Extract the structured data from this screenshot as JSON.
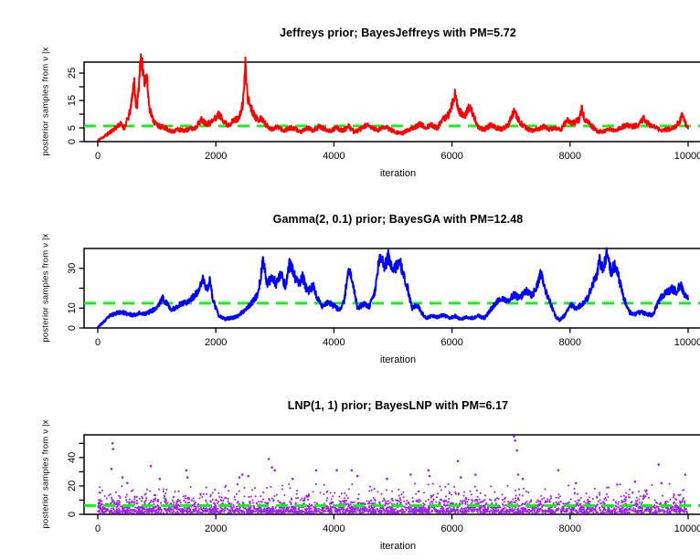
{
  "figure": {
    "background": "#FFFFFF",
    "axis_color": "#000000",
    "reference_line_color": "#00FF00",
    "xticks": [
      0,
      2000,
      4000,
      6000,
      8000,
      10000
    ]
  },
  "chart_data": [
    {
      "type": "line",
      "title": "Jeffreys prior; BayesJeffreys with PM=5.72",
      "xlabel": "iteration",
      "ylabel": "posterior samples from ν |x",
      "color": "#FF0000",
      "posterior_mean": 5.72,
      "xlim": [
        0,
        10000
      ],
      "ylim": [
        0,
        29
      ],
      "grid": false,
      "yticks": [
        {
          "v": 0,
          "label": "0"
        },
        {
          "v": 5,
          "label": "5"
        },
        {
          "v": 10,
          "label": ""
        },
        {
          "v": 15,
          "label": "15"
        },
        {
          "v": 20,
          "label": ""
        },
        {
          "v": 25,
          "label": "25"
        }
      ],
      "seed": 11,
      "noise": [
        0.3,
        0.11
      ],
      "keypoints": [
        [
          0,
          0.4
        ],
        [
          150,
          2.5
        ],
        [
          300,
          5
        ],
        [
          380,
          6.5
        ],
        [
          450,
          5
        ],
        [
          520,
          9
        ],
        [
          560,
          12
        ],
        [
          600,
          20
        ],
        [
          620,
          22
        ],
        [
          650,
          12
        ],
        [
          680,
          16
        ],
        [
          720,
          29
        ],
        [
          760,
          27
        ],
        [
          800,
          22
        ],
        [
          830,
          24
        ],
        [
          870,
          13
        ],
        [
          920,
          9
        ],
        [
          960,
          7
        ],
        [
          1050,
          5.5
        ],
        [
          1150,
          5
        ],
        [
          1250,
          3.5
        ],
        [
          1350,
          4.5
        ],
        [
          1450,
          4
        ],
        [
          1550,
          4.5
        ],
        [
          1650,
          5
        ],
        [
          1750,
          8
        ],
        [
          1850,
          6.5
        ],
        [
          1950,
          7.5
        ],
        [
          2050,
          10
        ],
        [
          2100,
          8.5
        ],
        [
          2200,
          6
        ],
        [
          2300,
          7.5
        ],
        [
          2400,
          9
        ],
        [
          2460,
          14
        ],
        [
          2500,
          28
        ],
        [
          2540,
          16
        ],
        [
          2600,
          12
        ],
        [
          2700,
          8
        ],
        [
          2780,
          8.5
        ],
        [
          2850,
          6
        ],
        [
          2950,
          4.5
        ],
        [
          3050,
          5.5
        ],
        [
          3150,
          4
        ],
        [
          3250,
          5
        ],
        [
          3350,
          4.5
        ],
        [
          3450,
          3.5
        ],
        [
          3550,
          5
        ],
        [
          3650,
          4
        ],
        [
          3750,
          5.5
        ],
        [
          3850,
          4.5
        ],
        [
          3950,
          4
        ],
        [
          4050,
          5
        ],
        [
          4150,
          4
        ],
        [
          4250,
          5.5
        ],
        [
          4350,
          3.5
        ],
        [
          4450,
          4.5
        ],
        [
          4550,
          6
        ],
        [
          4650,
          5
        ],
        [
          4750,
          4
        ],
        [
          4850,
          5.5
        ],
        [
          4950,
          4.5
        ],
        [
          5050,
          3.5
        ],
        [
          5150,
          3
        ],
        [
          5250,
          4
        ],
        [
          5350,
          5
        ],
        [
          5450,
          6.5
        ],
        [
          5550,
          5
        ],
        [
          5650,
          6
        ],
        [
          5750,
          5
        ],
        [
          5850,
          8
        ],
        [
          5950,
          10
        ],
        [
          6050,
          17
        ],
        [
          6100,
          12
        ],
        [
          6200,
          9
        ],
        [
          6300,
          13
        ],
        [
          6350,
          10
        ],
        [
          6450,
          5
        ],
        [
          6550,
          4.5
        ],
        [
          6650,
          6
        ],
        [
          6750,
          5
        ],
        [
          6850,
          4.5
        ],
        [
          6950,
          6
        ],
        [
          7050,
          11
        ],
        [
          7150,
          7
        ],
        [
          7250,
          5
        ],
        [
          7350,
          4
        ],
        [
          7450,
          4.5
        ],
        [
          7550,
          5.5
        ],
        [
          7650,
          4.5
        ],
        [
          7750,
          5
        ],
        [
          7850,
          4.5
        ],
        [
          7950,
          8
        ],
        [
          8050,
          6.5
        ],
        [
          8150,
          8
        ],
        [
          8200,
          12
        ],
        [
          8250,
          8
        ],
        [
          8350,
          6
        ],
        [
          8450,
          4
        ],
        [
          8550,
          3.5
        ],
        [
          8650,
          4.5
        ],
        [
          8750,
          4
        ],
        [
          8850,
          5
        ],
        [
          8950,
          6
        ],
        [
          9050,
          5.5
        ],
        [
          9150,
          6
        ],
        [
          9250,
          8.5
        ],
        [
          9350,
          6
        ],
        [
          9450,
          5
        ],
        [
          9550,
          4
        ],
        [
          9650,
          4.5
        ],
        [
          9750,
          5
        ],
        [
          9850,
          7
        ],
        [
          9900,
          10
        ],
        [
          9950,
          7
        ],
        [
          10000,
          5
        ]
      ]
    },
    {
      "type": "line",
      "title": "Gamma(2, 0.1) prior; BayesGA with PM=12.48",
      "xlabel": "iteration",
      "ylabel": "posterior samples from ν |x",
      "color": "#0000FF",
      "posterior_mean": 12.48,
      "xlim": [
        0,
        10000
      ],
      "ylim": [
        0,
        40
      ],
      "grid": false,
      "yticks": [
        {
          "v": 0,
          "label": "0"
        },
        {
          "v": 10,
          "label": "10"
        },
        {
          "v": 20,
          "label": ""
        },
        {
          "v": 30,
          "label": "30"
        }
      ],
      "seed": 23,
      "noise": [
        0.35,
        0.09
      ],
      "keypoints": [
        [
          0,
          0.5
        ],
        [
          100,
          3
        ],
        [
          200,
          6
        ],
        [
          300,
          7.5
        ],
        [
          400,
          8
        ],
        [
          500,
          7
        ],
        [
          600,
          6.5
        ],
        [
          700,
          7.5
        ],
        [
          800,
          7
        ],
        [
          900,
          8.5
        ],
        [
          1000,
          10
        ],
        [
          1100,
          15
        ],
        [
          1150,
          13
        ],
        [
          1250,
          9
        ],
        [
          1300,
          10
        ],
        [
          1400,
          12
        ],
        [
          1500,
          13
        ],
        [
          1600,
          15
        ],
        [
          1700,
          18
        ],
        [
          1780,
          25
        ],
        [
          1840,
          19
        ],
        [
          1900,
          24
        ],
        [
          1950,
          14
        ],
        [
          2050,
          6
        ],
        [
          2150,
          4.5
        ],
        [
          2250,
          5
        ],
        [
          2350,
          5.5
        ],
        [
          2450,
          8
        ],
        [
          2550,
          11
        ],
        [
          2650,
          14
        ],
        [
          2720,
          18
        ],
        [
          2800,
          34
        ],
        [
          2870,
          22
        ],
        [
          2950,
          26
        ],
        [
          3020,
          22
        ],
        [
          3100,
          27
        ],
        [
          3180,
          21
        ],
        [
          3250,
          33
        ],
        [
          3320,
          27
        ],
        [
          3400,
          22
        ],
        [
          3470,
          26
        ],
        [
          3550,
          18
        ],
        [
          3650,
          21
        ],
        [
          3720,
          15
        ],
        [
          3800,
          11
        ],
        [
          3900,
          13
        ],
        [
          4000,
          11
        ],
        [
          4100,
          9
        ],
        [
          4170,
          13
        ],
        [
          4250,
          30
        ],
        [
          4320,
          23
        ],
        [
          4400,
          10
        ],
        [
          4500,
          12
        ],
        [
          4600,
          11
        ],
        [
          4700,
          19
        ],
        [
          4780,
          38
        ],
        [
          4850,
          30
        ],
        [
          4920,
          36
        ],
        [
          5000,
          28
        ],
        [
          5060,
          31
        ],
        [
          5120,
          33
        ],
        [
          5180,
          26
        ],
        [
          5250,
          20
        ],
        [
          5320,
          10
        ],
        [
          5400,
          12
        ],
        [
          5480,
          8
        ],
        [
          5560,
          5
        ],
        [
          5650,
          6
        ],
        [
          5750,
          5.5
        ],
        [
          5850,
          6.5
        ],
        [
          5950,
          5
        ],
        [
          6050,
          6
        ],
        [
          6150,
          4.5
        ],
        [
          6250,
          5.5
        ],
        [
          6350,
          5
        ],
        [
          6450,
          6
        ],
        [
          6550,
          5
        ],
        [
          6650,
          9
        ],
        [
          6750,
          13
        ],
        [
          6850,
          15
        ],
        [
          6950,
          14
        ],
        [
          7050,
          17
        ],
        [
          7150,
          15
        ],
        [
          7250,
          19
        ],
        [
          7350,
          16
        ],
        [
          7450,
          22
        ],
        [
          7500,
          28
        ],
        [
          7560,
          21
        ],
        [
          7650,
          14
        ],
        [
          7750,
          6
        ],
        [
          7820,
          4
        ],
        [
          7900,
          6
        ],
        [
          8000,
          12
        ],
        [
          8100,
          10
        ],
        [
          8200,
          12
        ],
        [
          8300,
          15
        ],
        [
          8370,
          21
        ],
        [
          8450,
          27
        ],
        [
          8500,
          34
        ],
        [
          8560,
          30
        ],
        [
          8620,
          37
        ],
        [
          8700,
          28
        ],
        [
          8760,
          32
        ],
        [
          8820,
          26
        ],
        [
          8900,
          16
        ],
        [
          9000,
          8
        ],
        [
          9100,
          7
        ],
        [
          9200,
          8
        ],
        [
          9300,
          7
        ],
        [
          9400,
          6.5
        ],
        [
          9480,
          12
        ],
        [
          9550,
          16
        ],
        [
          9650,
          18
        ],
        [
          9720,
          20
        ],
        [
          9800,
          18
        ],
        [
          9870,
          22
        ],
        [
          9930,
          17
        ],
        [
          10000,
          16
        ]
      ]
    },
    {
      "type": "scatter",
      "title": "LNP(1, 1) prior; BayesLNP with PM=6.17",
      "xlabel": "iteration",
      "ylabel": "posterior samples from ν |x",
      "color": "#A020F0",
      "posterior_mean": 6.17,
      "xlim": [
        0,
        10000
      ],
      "ylim": [
        0,
        56
      ],
      "grid": false,
      "yticks": [
        {
          "v": 0,
          "label": "0"
        },
        {
          "v": 10,
          "label": ""
        },
        {
          "v": 20,
          "label": "20"
        },
        {
          "v": 30,
          "label": ""
        },
        {
          "v": 40,
          "label": "40"
        },
        {
          "v": 50,
          "label": ""
        }
      ],
      "seed": 7,
      "band": {
        "count": 3000,
        "floor": 0.9,
        "exp_mean": 4.3,
        "cap": 22
      },
      "outliers": [
        [
          230,
          32
        ],
        [
          250,
          50
        ],
        [
          260,
          46
        ],
        [
          420,
          26
        ],
        [
          500,
          22
        ],
        [
          900,
          34
        ],
        [
          1050,
          25
        ],
        [
          1500,
          31
        ],
        [
          1520,
          26
        ],
        [
          2400,
          26
        ],
        [
          2450,
          28
        ],
        [
          2550,
          27
        ],
        [
          2900,
          39
        ],
        [
          2950,
          33
        ],
        [
          3000,
          31
        ],
        [
          3300,
          25
        ],
        [
          3700,
          31
        ],
        [
          4050,
          31
        ],
        [
          4300,
          31
        ],
        [
          4400,
          27
        ],
        [
          4900,
          25
        ],
        [
          5300,
          28
        ],
        [
          5600,
          31
        ],
        [
          5620,
          27
        ],
        [
          6100,
          37.5
        ],
        [
          6150,
          26
        ],
        [
          6400,
          28
        ],
        [
          7050,
          55
        ],
        [
          7070,
          52
        ],
        [
          7100,
          45
        ],
        [
          7120,
          28
        ],
        [
          7200,
          25
        ],
        [
          7800,
          31
        ],
        [
          8100,
          22
        ],
        [
          8800,
          21
        ],
        [
          9100,
          23
        ],
        [
          9500,
          35
        ],
        [
          9550,
          22
        ],
        [
          9950,
          28
        ]
      ]
    }
  ]
}
